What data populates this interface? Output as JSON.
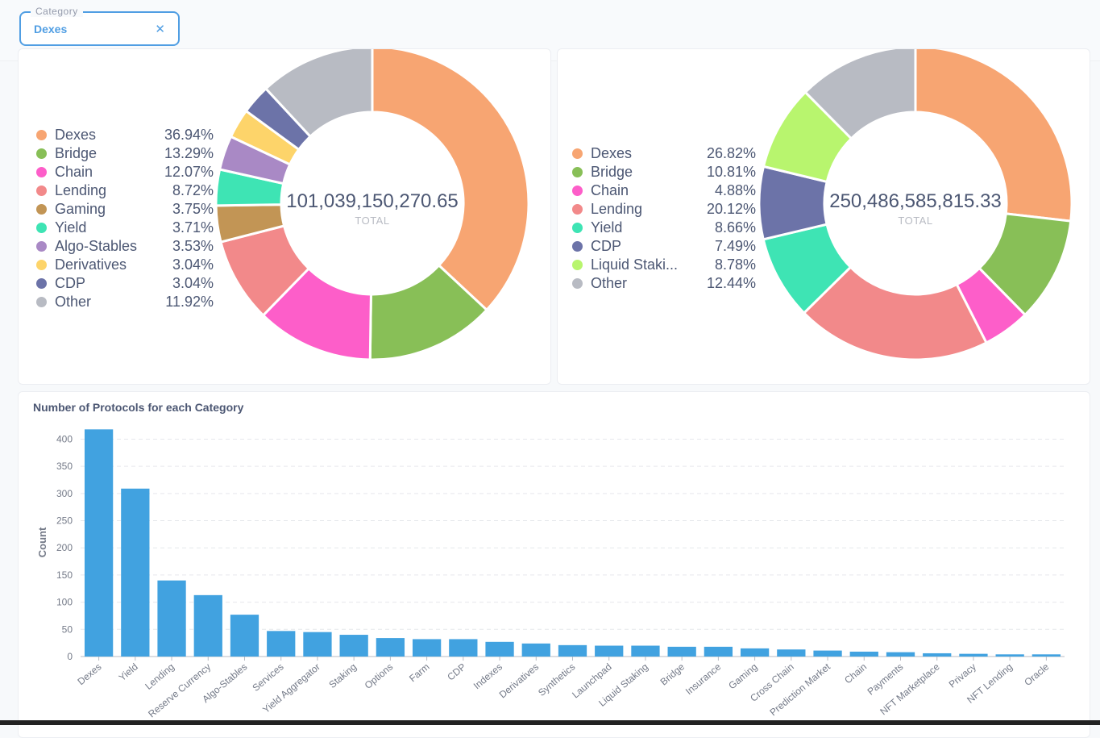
{
  "filter": {
    "label": "Category",
    "value": "Dexes",
    "clear_icon": "close-icon"
  },
  "colors": {
    "Dexes": "#f7a572",
    "Bridge": "#88bf57",
    "Chain": "#fd5ec9",
    "Lending": "#f2898a",
    "Gaming": "#c29555",
    "Yield": "#3ee4b4",
    "Algo-Stables": "#a989c5",
    "Derivatives": "#fdd46a",
    "CDP": "#6c73a8",
    "Liquid Staking": "#b8f56e",
    "Other": "#b8bbc3",
    "bar": "#41a2e0"
  },
  "chart_data": [
    {
      "type": "pie",
      "variant": "donut",
      "total": "101,039,150,270.65",
      "total_label": "TOTAL",
      "slices": [
        {
          "name": "Dexes",
          "pct": "36.94%",
          "value": 36.94
        },
        {
          "name": "Bridge",
          "pct": "13.29%",
          "value": 13.29
        },
        {
          "name": "Chain",
          "pct": "12.07%",
          "value": 12.07
        },
        {
          "name": "Lending",
          "pct": "8.72%",
          "value": 8.72
        },
        {
          "name": "Gaming",
          "pct": "3.75%",
          "value": 3.75
        },
        {
          "name": "Yield",
          "pct": "3.71%",
          "value": 3.71
        },
        {
          "name": "Algo-Stables",
          "pct": "3.53%",
          "value": 3.53
        },
        {
          "name": "Derivatives",
          "pct": "3.04%",
          "value": 3.04
        },
        {
          "name": "CDP",
          "pct": "3.04%",
          "value": 3.04
        },
        {
          "name": "Other",
          "pct": "11.92%",
          "value": 11.92
        }
      ]
    },
    {
      "type": "pie",
      "variant": "donut",
      "total": "250,486,585,815.33",
      "total_label": "TOTAL",
      "slices": [
        {
          "name": "Dexes",
          "display": "Dexes",
          "pct": "26.82%",
          "value": 26.82
        },
        {
          "name": "Bridge",
          "display": "Bridge",
          "pct": "10.81%",
          "value": 10.81
        },
        {
          "name": "Chain",
          "display": "Chain",
          "pct": "4.88%",
          "value": 4.88
        },
        {
          "name": "Lending",
          "display": "Lending",
          "pct": "20.12%",
          "value": 20.12
        },
        {
          "name": "Yield",
          "display": "Yield",
          "pct": "8.66%",
          "value": 8.66
        },
        {
          "name": "CDP",
          "display": "CDP",
          "pct": "7.49%",
          "value": 7.49
        },
        {
          "name": "Liquid Staking",
          "display": "Liquid Staki...",
          "pct": "8.78%",
          "value": 8.78
        },
        {
          "name": "Other",
          "display": "Other",
          "pct": "12.44%",
          "value": 12.44
        }
      ]
    },
    {
      "type": "bar",
      "title": "Number of Protocols for each Category",
      "ylabel": "Count",
      "xlabel": "",
      "ylim": [
        0,
        420
      ],
      "yticks": [
        0,
        50,
        100,
        150,
        200,
        250,
        300,
        350,
        400
      ],
      "grid": true,
      "categories": [
        "Dexes",
        "Yield",
        "Lending",
        "Reserve Currency",
        "Algo-Stables",
        "Services",
        "Yield Aggregator",
        "Staking",
        "Options",
        "Farm",
        "CDP",
        "Indexes",
        "Derivatives",
        "Synthetics",
        "Launchpad",
        "Liquid Staking",
        "Bridge",
        "Insurance",
        "Gaming",
        "Cross Chain",
        "Prediction Market",
        "Chain",
        "Payments",
        "NFT Marketplace",
        "Privacy",
        "NFT Lending",
        "Oracle"
      ],
      "values": [
        418,
        309,
        140,
        113,
        77,
        47,
        45,
        40,
        34,
        32,
        32,
        27,
        24,
        21,
        20,
        20,
        18,
        18,
        15,
        13,
        11,
        9,
        8,
        6,
        5,
        4,
        4
      ]
    }
  ]
}
